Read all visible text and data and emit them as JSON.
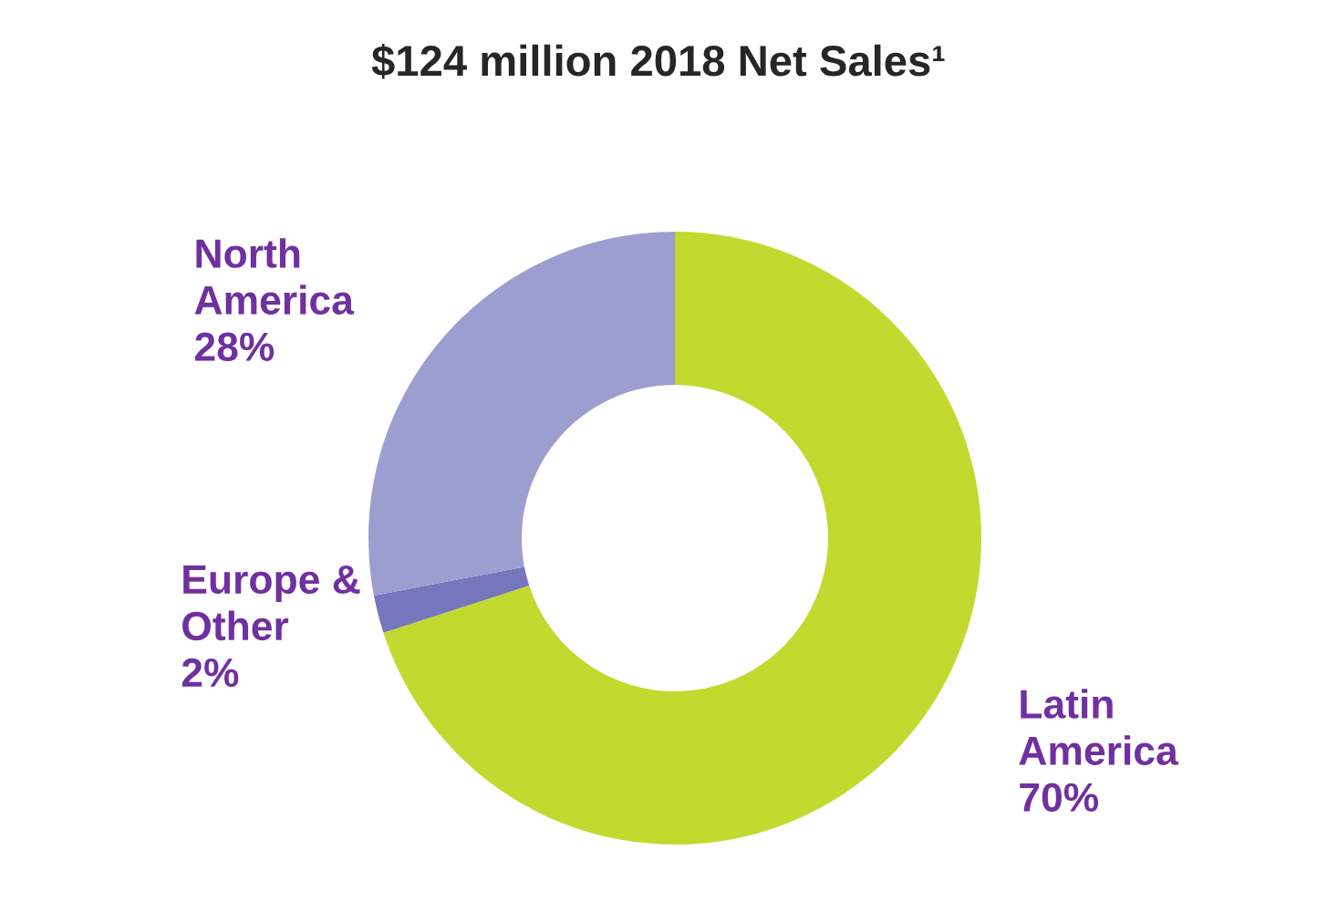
{
  "chart_data": {
    "type": "donut",
    "title": "$124 million 2018 Net Sales¹",
    "categories": [
      "Latin\nAmerica",
      "Europe &\nOther",
      "North\nAmerica"
    ],
    "values": [
      70,
      2,
      28
    ],
    "value_labels": [
      "70%",
      "2%",
      "28%"
    ],
    "colors": [
      "#c2d92f",
      "#7676bd",
      "#9c9ed0"
    ],
    "legend": false
  }
}
